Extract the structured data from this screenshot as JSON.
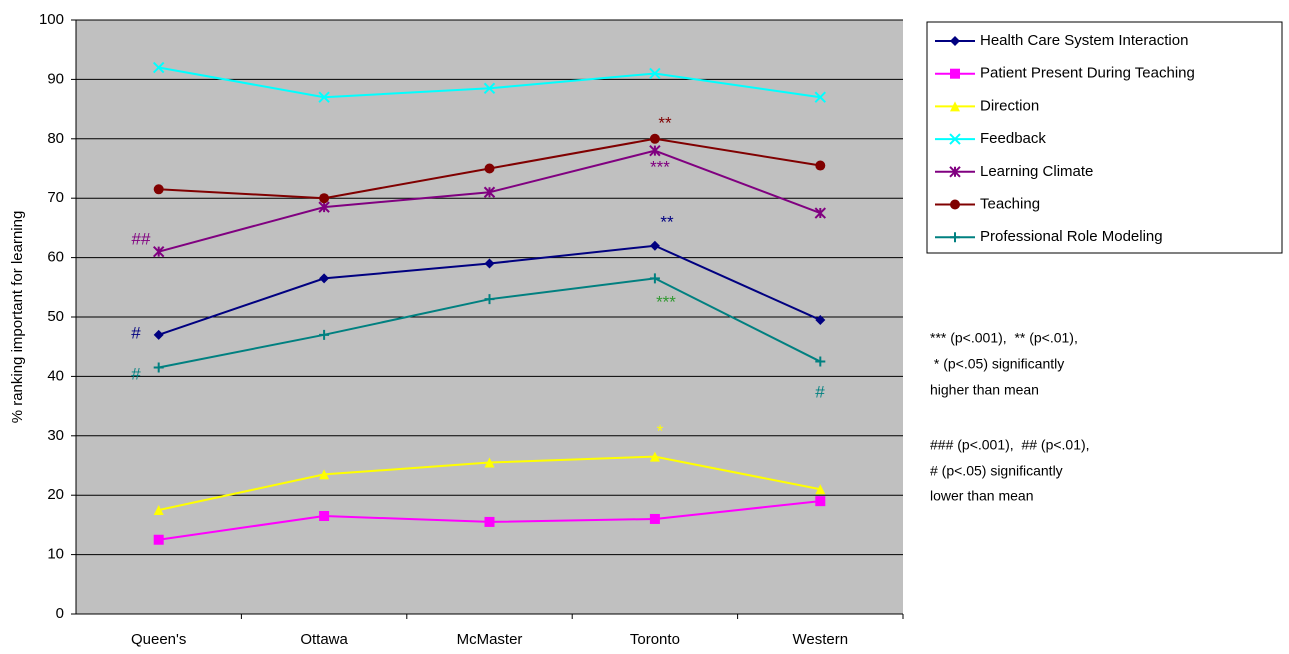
{
  "chart_data": {
    "type": "line",
    "y_label": "% ranking important for learning",
    "categories": [
      "Queen's",
      "Ottawa",
      "McMaster",
      "Toronto",
      "Western"
    ],
    "series": [
      {
        "name": "Health Care System Interaction",
        "color": "#000080",
        "marker": "diamond",
        "values": [
          47,
          56.5,
          59,
          62,
          49.5
        ]
      },
      {
        "name": "Patient Present During Teaching",
        "color": "#ff00ff",
        "marker": "square",
        "values": [
          12.5,
          16.5,
          15.5,
          16,
          19
        ]
      },
      {
        "name": "Direction",
        "color": "#ffff00",
        "marker": "triangle",
        "values": [
          17.5,
          23.5,
          25.5,
          26.5,
          21
        ]
      },
      {
        "name": "Feedback",
        "color": "#00ffff",
        "marker": "x",
        "values": [
          92,
          87,
          88.5,
          91,
          87
        ]
      },
      {
        "name": "Learning Climate",
        "color": "#800080",
        "marker": "star",
        "values": [
          61,
          68.5,
          71,
          78,
          67.5
        ]
      },
      {
        "name": "Teaching",
        "color": "#800000",
        "marker": "circle",
        "values": [
          71.5,
          70,
          75,
          80,
          75.5
        ]
      },
      {
        "name": "Professional Role Modeling",
        "color": "#008080",
        "marker": "plus",
        "values": [
          41.5,
          47,
          53,
          56.5,
          42.5
        ]
      }
    ],
    "ylim": [
      0,
      100
    ],
    "yticks": [
      0,
      10,
      20,
      30,
      40,
      50,
      60,
      70,
      80,
      90,
      100
    ],
    "grid": true,
    "legend": "right",
    "annotations": [
      {
        "text": "##",
        "color": "#800080"
      },
      {
        "text": "#",
        "color": "#000080"
      },
      {
        "text": "#",
        "color": "#008080"
      },
      {
        "text": "**",
        "color": "#800000"
      },
      {
        "text": "***",
        "color": "#800080"
      },
      {
        "text": "**",
        "color": "#000080"
      },
      {
        "text": "***",
        "color": "#339933"
      },
      {
        "text": "*",
        "color": "#ffff00"
      },
      {
        "text": "#",
        "color": "#008080"
      }
    ],
    "notes": [
      "*** (p<.001),  ** (p<.01),",
      " * (p<.05) significantly",
      "higher than mean",
      "### (p<.001),  ## (p<.01),",
      "# (p<.05) significantly",
      "lower than mean"
    ]
  }
}
